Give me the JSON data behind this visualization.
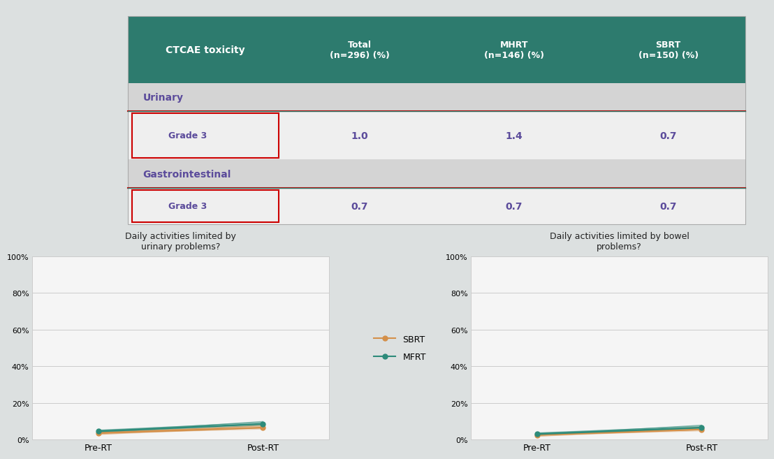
{
  "table": {
    "header_bg": "#2d7b6e",
    "header_text_color": "#ffffff",
    "row_bg_section": "#d4d4d4",
    "row_bg_data": "#efefef",
    "data_text_color": "#5b4b9b",
    "section_text_color": "#5b4b9b",
    "col0_label": "CTCAE toxicity",
    "columns": [
      "Total\n(n=296) (%)",
      "MHRT\n(n=146) (%)",
      "SBRT\n(n=150) (%)"
    ],
    "rows": [
      {
        "section": "Urinary",
        "grade": "Grade 3",
        "values": [
          "1.0",
          "1.4",
          "0.7"
        ]
      },
      {
        "section": "Gastrointestinal",
        "grade": "Grade 3",
        "values": [
          "0.7",
          "0.7",
          "0.7"
        ]
      }
    ],
    "red_line_color": "#cc0000",
    "teal_line_color": "#2d7b6e"
  },
  "chart_urinary": {
    "title": "Daily activities limited by\nurinary problems?",
    "x_labels": [
      "Pre-RT",
      "Post-RT"
    ],
    "sbrt_values": [
      3.5,
      6.5
    ],
    "mfrt_values": [
      4.5,
      8.5
    ],
    "y_ticks": [
      0,
      20,
      40,
      60,
      80,
      100
    ],
    "y_tick_labels": [
      "0%",
      "20%",
      "40%",
      "60%",
      "80%",
      "100%"
    ]
  },
  "chart_bowel": {
    "title": "Daily activities limited by bowel\nproblems?",
    "x_labels": [
      "Pre-RT",
      "Post-RT"
    ],
    "sbrt_values": [
      2.5,
      5.5
    ],
    "mfrt_values": [
      3.0,
      6.5
    ],
    "y_ticks": [
      0,
      20,
      40,
      60,
      80,
      100
    ],
    "y_tick_labels": [
      "0%",
      "20%",
      "40%",
      "60%",
      "80%",
      "100%"
    ]
  },
  "sbrt_color": "#d4904a",
  "mfrt_color": "#2d8b7a",
  "bg_color": "#dce0e0",
  "chart_bg": "#f5f5f5",
  "legend_sbrt": "SBRT",
  "legend_mfrt": "MFRT"
}
